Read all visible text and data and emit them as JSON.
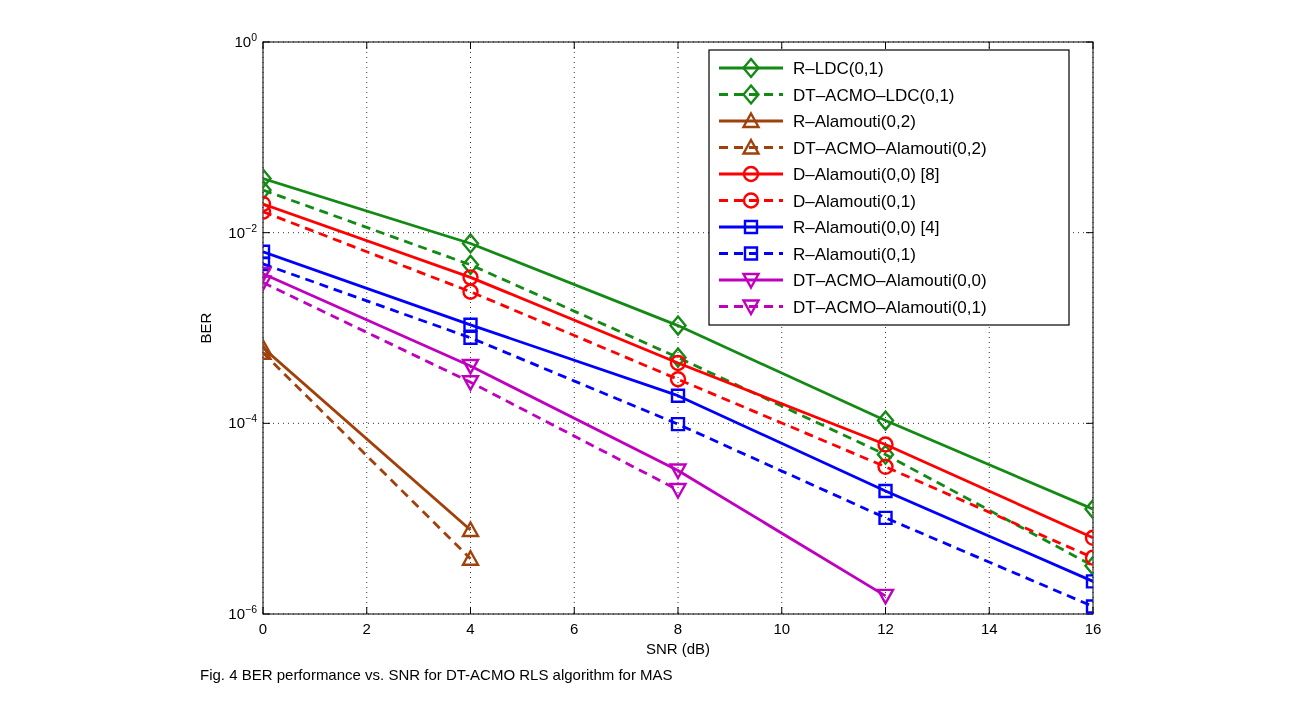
{
  "chart_data": {
    "type": "line",
    "xlabel": "SNR (dB)",
    "ylabel": "BER",
    "x": [
      0,
      4,
      8,
      12,
      16
    ],
    "log": true,
    "xlim": [
      0,
      16
    ],
    "xticks": [
      0,
      2,
      4,
      6,
      8,
      10,
      12,
      14,
      16
    ],
    "ylim": [
      1e-06,
      1
    ],
    "yticks": [
      {
        "value": 1e-06,
        "label": "10$^{−6}$"
      },
      {
        "value": 0.0001,
        "label": "10$^{−4}$"
      },
      {
        "value": 0.01,
        "label": "10$^{−2}$"
      },
      {
        "value": 1,
        "label": "10$^{0}$"
      }
    ],
    "grid": true,
    "legend": "top right",
    "series": [
      {
        "name": "R–LDC(0,1)",
        "color": "#138a13",
        "marker": "diamond",
        "line_style": "solid",
        "values": [
          0.037,
          0.0077,
          0.00106,
          0.000107,
          1.26e-05
        ]
      },
      {
        "name": "DT–ACMO–LDC(0,1)",
        "color": "#138a13",
        "marker": "diamond",
        "line_style": "dashed",
        "values": [
          0.028,
          0.0046,
          0.00049,
          4.7e-05,
          3.2e-06
        ]
      },
      {
        "name": "R–Alamouti(0,2)",
        "color": "#a0400a",
        "marker": "triangle",
        "line_style": "solid",
        "values": [
          0.00062,
          7.6e-06,
          null,
          null,
          null
        ]
      },
      {
        "name": "DT–ACMO–Alamouti(0,2)",
        "color": "#a0400a",
        "marker": "triangle",
        "line_style": "dashed",
        "values": [
          0.00055,
          3.8e-06,
          null,
          null,
          null
        ]
      },
      {
        "name": "D–Alamouti(0,0) [8]",
        "color": "#ff0000",
        "marker": "circle",
        "line_style": "solid",
        "values": [
          0.02,
          0.0034,
          0.00043,
          6e-05,
          6.3e-06
        ]
      },
      {
        "name": "D–Alamouti(0,1)",
        "color": "#ff0000",
        "marker": "circle",
        "line_style": "dashed",
        "values": [
          0.0166,
          0.0024,
          0.00029,
          3.5e-05,
          3.9e-06
        ]
      },
      {
        "name": "R–Alamouti(0,0) [4]",
        "color": "#0000ff",
        "marker": "square",
        "line_style": "solid",
        "values": [
          0.0063,
          0.00108,
          0.000195,
          1.95e-05,
          2.2e-06
        ]
      },
      {
        "name": "R–Alamouti(0,1)",
        "color": "#0000ff",
        "marker": "square",
        "line_style": "dashed",
        "values": [
          0.0047,
          0.00079,
          9.8e-05,
          1.02e-05,
          1.2e-06
        ]
      },
      {
        "name": "DT–ACMO–Alamouti(0,0)",
        "color": "#bf00bf",
        "marker": "triangle-down",
        "line_style": "solid",
        "values": [
          0.0037,
          0.0004,
          3.2e-05,
          1.55e-06,
          null
        ]
      },
      {
        "name": "DT–ACMO–Alamouti(0,1)",
        "color": "#bf00bf",
        "marker": "triangle-down",
        "line_style": "dashed",
        "values": [
          0.003,
          0.00027,
          2e-05,
          null,
          null
        ]
      }
    ],
    "annotations": [
      "Fig. 4 BER performance vs. SNR for DT-ACMO RLS algorithm for MAS"
    ]
  }
}
